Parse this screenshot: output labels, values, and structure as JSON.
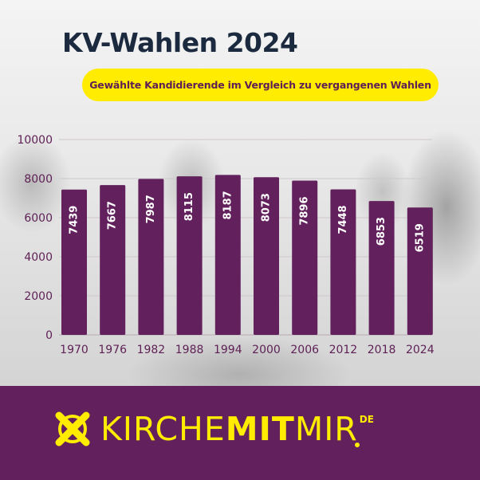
{
  "header": {
    "title": "KV-Wahlen 2024",
    "subtitle": "Gewählte Kandidierende im Vergleich zu vergangenen Wahlen"
  },
  "colors": {
    "bar": "#62215c",
    "title": "#1b2a3e",
    "accent_yellow": "#ffec00",
    "footer_bg": "#62215c",
    "axis_text": "#5e1f55"
  },
  "chart_data": {
    "type": "bar",
    "title": "KV-Wahlen 2024",
    "subtitle": "Gewählte Kandidierende im Vergleich zu vergangenen Wahlen",
    "xlabel": "",
    "ylabel": "",
    "categories": [
      "1970",
      "1976",
      "1982",
      "1988",
      "1994",
      "2000",
      "2006",
      "2012",
      "2018",
      "2024"
    ],
    "values": [
      7439,
      7667,
      7987,
      8115,
      8187,
      8073,
      7896,
      7448,
      6853,
      6519
    ],
    "value_labels": [
      "7439",
      "7667",
      "7987",
      "8115",
      "8187",
      "8073",
      "7896",
      "7448",
      "6853",
      "6519"
    ],
    "ylim": [
      0,
      10000
    ],
    "yticks": [
      "0",
      "2000",
      "4000",
      "6000",
      "8000",
      "10000"
    ],
    "grid": true,
    "legend": null,
    "label_orientation": "vertical-inside-bar"
  },
  "footer": {
    "logo_icon": "ballot-cross-icon",
    "brand_part1": "KIRCHE",
    "brand_part2": "MIT",
    "brand_part3": "MIR",
    "brand_tld": "DE"
  }
}
